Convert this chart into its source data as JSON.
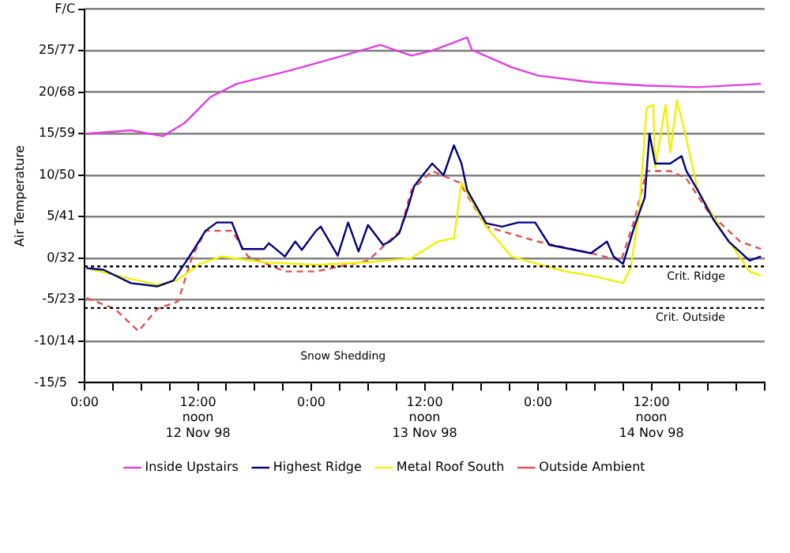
{
  "chart_data": {
    "type": "line",
    "ylabel": "Air Temperature",
    "xlim": [
      "1998-11-12T00:00",
      "1998-11-15T00:00"
    ],
    "ylim": [
      -15,
      30
    ],
    "yticks": [
      {
        "value": 30,
        "label": null
      },
      25,
      20,
      15,
      10,
      5,
      0,
      -5,
      -10,
      -15
    ],
    "y2lim": [
      5,
      86
    ],
    "y2ticks": [
      {
        "value": 86,
        "label": null
      },
      {
        "value": 77,
        "label": "/77"
      },
      {
        "value": 68,
        "label": "/68"
      },
      {
        "value": 59,
        "label": "/59"
      },
      {
        "value": 50,
        "label": "/50"
      },
      {
        "value": 41,
        "label": "/41"
      },
      {
        "value": 32,
        "label": "/32"
      },
      {
        "value": 23,
        "label": "/23"
      },
      {
        "value": 14,
        "label": "/14"
      },
      {
        "value": 5,
        "label": "/5"
      }
    ],
    "xticks": [
      {
        "value": "1998-11-12T00:00",
        "label": "0:00"
      },
      {
        "value": "1998-11-12T03:00",
        "label": null
      },
      {
        "value": "1998-11-12T06:00",
        "label": null
      },
      {
        "value": "1998-11-12T09:00",
        "label": null
      },
      {
        "value": "1998-11-12T12:00",
        "label": "12:00\nnoon\n12 Nov 98"
      },
      {
        "value": "1998-11-12T15:00",
        "label": null
      },
      {
        "value": "1998-11-12T18:00",
        "label": null
      },
      {
        "value": "1998-11-12T21:00",
        "label": null
      },
      {
        "value": "1998-11-13T00:00",
        "label": "0:00"
      },
      {
        "value": "1998-11-13T03:00",
        "label": null
      },
      {
        "value": "1998-11-13T06:00",
        "label": null
      },
      {
        "value": "1998-11-13T09:00",
        "label": null
      },
      {
        "value": "1998-11-13T12:00",
        "label": "12:00\nnoon\n13 Nov 98"
      },
      {
        "value": "1998-11-13T15:00",
        "label": null
      },
      {
        "value": "1998-11-13T18:00",
        "label": null
      },
      {
        "value": "1998-11-13T21:00",
        "label": null
      },
      {
        "value": "1998-11-14T00:00",
        "label": "0:00"
      },
      {
        "value": "1998-11-14T03:00",
        "label": null
      },
      {
        "value": "1998-11-14T06:00",
        "label": null
      },
      {
        "value": "1998-11-14T09:00",
        "label": null
      },
      {
        "value": "1998-11-14T12:00",
        "label": "12:00\nnoon\n14 Nov 98"
      },
      {
        "value": "1998-11-14T15:00",
        "label": null
      },
      {
        "value": "1998-11-14T18:00",
        "label": null
      },
      {
        "value": "1998-11-14T21:00",
        "label": null
      },
      {
        "value": "1998-11-15T00:00",
        "label": null
      }
    ],
    "grid": "y",
    "legend": "bottom",
    "marker": "none",
    "ref_lines": [
      {
        "axis": "y",
        "value": -1,
        "label": "Crit. Ridge",
        "line_style": "dotted",
        "color": "#000000"
      },
      {
        "axis": "y",
        "value": -6,
        "label": "Crit. Outside",
        "line_style": "dotted",
        "color": "#000000"
      }
    ],
    "annotations": [
      "Snow Shedding",
      "F/C"
    ],
    "series": [
      {
        "name": "Inside Upstairs",
        "color": "#e040e0",
        "line_style": "solid",
        "x": [
          "1998-11-12T00:12",
          "1998-11-12T04:54",
          "1998-11-12T08:18",
          "1998-11-12T10:36",
          "1998-11-12T13:18",
          "1998-11-12T16:06",
          "1998-11-12T21:42",
          "1998-11-13T03:24",
          "1998-11-13T07:18",
          "1998-11-13T10:36",
          "1998-11-13T12:48",
          "1998-11-13T16:30",
          "1998-11-13T17:00",
          "1998-11-13T21:12",
          "1998-11-14T00:00",
          "1998-11-14T05:36",
          "1998-11-14T11:18",
          "1998-11-14T16:54",
          "1998-11-14T23:36"
        ],
        "values": [
          15,
          15.4,
          14.7,
          16.3,
          19.4,
          21,
          22.6,
          24.4,
          25.7,
          24.4,
          25,
          26.6,
          25.1,
          23,
          22,
          21.2,
          20.8,
          20.6,
          21
        ]
      },
      {
        "name": "Highest Ridge",
        "color": "#000080",
        "line_style": "solid",
        "x": [
          "1998-11-12T00:12",
          "1998-11-12T02:00",
          "1998-11-12T04:54",
          "1998-11-12T07:42",
          "1998-11-12T09:24",
          "1998-11-12T10:48",
          "1998-11-12T11:36",
          "1998-11-12T12:48",
          "1998-11-12T14:00",
          "1998-11-12T15:36",
          "1998-11-12T16:42",
          "1998-11-12T19:00",
          "1998-11-12T19:30",
          "1998-11-12T21:12",
          "1998-11-12T22:18",
          "1998-11-12T23:00",
          "1998-11-13T00:30",
          "1998-11-13T01:00",
          "1998-11-13T02:48",
          "1998-11-13T03:54",
          "1998-11-13T05:00",
          "1998-11-13T06:00",
          "1998-11-13T07:36",
          "1998-11-13T08:18",
          "1998-11-13T09:18",
          "1998-11-13T10:06",
          "1998-11-13T10:54",
          "1998-11-13T11:48",
          "1998-11-13T12:48",
          "1998-11-13T14:00",
          "1998-11-13T15:06",
          "1998-11-13T15:54",
          "1998-11-13T16:30",
          "1998-11-13T18:30",
          "1998-11-13T20:12",
          "1998-11-13T21:54",
          "1998-11-13T23:42",
          "1998-11-14T01:12",
          "1998-11-14T03:24",
          "1998-11-14T05:36",
          "1998-11-14T07:18",
          "1998-11-14T08:00",
          "1998-11-14T09:00",
          "1998-11-14T10:12",
          "1998-11-14T11:18",
          "1998-11-14T11:48",
          "1998-11-14T12:24",
          "1998-11-14T14:00",
          "1998-11-14T15:12",
          "1998-11-14T15:42",
          "1998-11-14T16:54",
          "1998-11-14T18:36",
          "1998-11-14T20:12",
          "1998-11-14T22:24",
          "1998-11-14T23:36"
        ],
        "values": [
          -1.2,
          -1.4,
          -3,
          -3.4,
          -2.7,
          -0.3,
          1.1,
          3.3,
          4.3,
          4.3,
          1.1,
          1.1,
          1.8,
          0.2,
          2,
          1,
          3.3,
          3.8,
          0.3,
          4.3,
          0.8,
          4,
          1.6,
          2,
          3,
          5.6,
          8.7,
          10,
          11.4,
          10,
          13.6,
          11.4,
          8.2,
          4.2,
          3.8,
          4.3,
          4.3,
          1.6,
          1.1,
          0.6,
          2,
          0.2,
          -0.7,
          3.8,
          7.3,
          15,
          11.4,
          11.4,
          12.3,
          10.5,
          8.2,
          4.6,
          2,
          -0.3,
          0.2
        ]
      },
      {
        "name": "Metal Roof South",
        "color": "#f0f000",
        "line_style": "solid",
        "x": [
          "1998-11-12T00:12",
          "1998-11-12T04:54",
          "1998-11-12T07:42",
          "1998-11-12T09:42",
          "1998-11-12T12:12",
          "1998-11-12T14:30",
          "1998-11-12T19:00",
          "1998-11-13T00:30",
          "1998-11-13T06:00",
          "1998-11-13T10:36",
          "1998-11-13T13:24",
          "1998-11-13T15:06",
          "1998-11-13T15:54",
          "1998-11-13T16:48",
          "1998-11-13T18:30",
          "1998-11-13T21:12",
          "1998-11-14T00:00",
          "1998-11-14T02:54",
          "1998-11-14T05:36",
          "1998-11-14T09:00",
          "1998-11-14T09:48",
          "1998-11-14T10:42",
          "1998-11-14T11:30",
          "1998-11-14T12:12",
          "1998-11-14T12:24",
          "1998-11-14T13:30",
          "1998-11-14T14:00",
          "1998-11-14T14:42",
          "1998-11-14T15:30",
          "1998-11-14T16:54",
          "1998-11-14T19:42",
          "1998-11-14T22:24",
          "1998-11-14T23:36"
        ],
        "values": [
          -1.2,
          -2.5,
          -3.2,
          -2.7,
          -0.7,
          0.2,
          -0.5,
          -0.8,
          -0.5,
          0,
          2,
          2.4,
          9.1,
          7.3,
          3.8,
          0.2,
          -0.7,
          -1.6,
          -2.1,
          -3,
          -1.2,
          5.6,
          18.1,
          18.5,
          10.9,
          18.5,
          12.7,
          19,
          15.4,
          8.2,
          2.9,
          -1.6,
          -2.1
        ]
      },
      {
        "name": "Outside Ambient",
        "color": "#e05050",
        "line_style": "dashed",
        "x": [
          "1998-11-12T00:12",
          "1998-11-12T03:12",
          "1998-11-12T05:42",
          "1998-11-12T07:42",
          "1998-11-12T09:54",
          "1998-11-12T11:24",
          "1998-11-12T12:48",
          "1998-11-12T15:36",
          "1998-11-12T17:18",
          "1998-11-12T21:12",
          "1998-11-13T00:30",
          "1998-11-13T06:00",
          "1998-11-13T09:24",
          "1998-11-13T10:36",
          "1998-11-13T12:48",
          "1998-11-13T15:42",
          "1998-11-13T18:30",
          "1998-11-14T00:00",
          "1998-11-14T05:36",
          "1998-11-14T08:48",
          "1998-11-14T10:12",
          "1998-11-14T11:30",
          "1998-11-14T14:00",
          "1998-11-14T15:42",
          "1998-11-14T18:00",
          "1998-11-14T21:24",
          "1998-11-14T23:36"
        ],
        "values": [
          -4.8,
          -6.1,
          -8.8,
          -6.1,
          -5.2,
          0.2,
          3.3,
          3.3,
          0.2,
          -1.6,
          -1.6,
          -0.3,
          3.3,
          8.2,
          10.5,
          9.1,
          3.8,
          2,
          0.6,
          -0.3,
          4.6,
          10.5,
          10.5,
          9.6,
          5.6,
          2,
          1.1
        ]
      }
    ]
  }
}
